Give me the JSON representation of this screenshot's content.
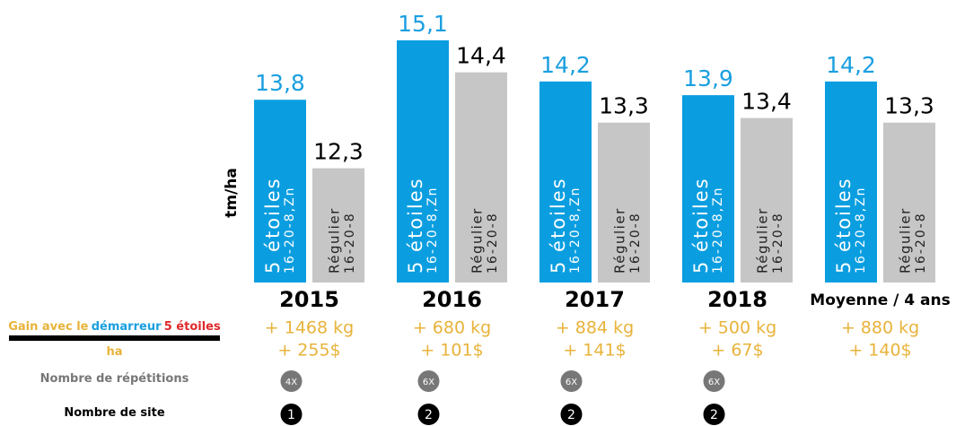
{
  "chart_data": {
    "type": "bar",
    "y_label": "tm/ha",
    "categories": [
      "2015",
      "2016",
      "2017",
      "2018",
      "Moyenne / 4 ans"
    ],
    "series": [
      {
        "name": "5 étoiles",
        "subname": "16-20-8,Zn",
        "color": "#0a9ee0",
        "label_color": "#1a9fe0",
        "values": [
          13.8,
          15.1,
          14.2,
          13.9,
          14.2
        ],
        "value_labels": [
          "13,8",
          "15,1",
          "14,2",
          "13,9",
          "14,2"
        ]
      },
      {
        "name": "Régulier",
        "subname": "16-20-8",
        "color": "#c6c6c6",
        "label_color": "#000000",
        "values": [
          12.3,
          14.4,
          13.3,
          13.4,
          13.3
        ],
        "value_labels": [
          "12,3",
          "14,4",
          "13,3",
          "13,4",
          "13,3"
        ]
      }
    ],
    "ylim": [
      9.8,
      15.1
    ],
    "rows": {
      "gain_label": [
        "Gain avec le",
        "démarreur",
        "5 étoiles"
      ],
      "gain_unit": "ha",
      "gain_kg": [
        "+ 1468 kg",
        "+ 680 kg",
        "+ 884 kg",
        "+ 500 kg",
        "+ 880 kg"
      ],
      "gain_dollars": [
        "+ 255$",
        "+ 101$",
        "+ 141$",
        "+ 67$",
        "+ 140$"
      ],
      "repetitions_label": "Nombre de répétitions",
      "repetitions": [
        "4X",
        "6X",
        "6X",
        "6X",
        null
      ],
      "sites_label": "Nombre de site",
      "sites": [
        1,
        2,
        2,
        2,
        null
      ]
    }
  }
}
